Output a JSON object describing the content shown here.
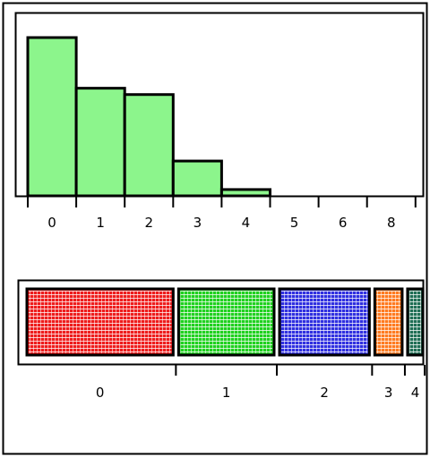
{
  "chart_data": [
    {
      "type": "bar",
      "title": "",
      "xlabel": "",
      "ylabel": "",
      "categories": [
        "0",
        "1",
        "2",
        "3",
        "4",
        "5",
        "6",
        "8"
      ],
      "values": [
        100,
        68,
        64,
        22,
        4,
        0,
        0,
        0
      ],
      "ylim": [
        0,
        100
      ],
      "grid": false,
      "bar_color": "#8cf58c",
      "edge_color": "#000000"
    },
    {
      "type": "bar",
      "orientation": "horizontal-stacked",
      "title": "",
      "xlabel": "",
      "categories": [
        "0",
        "1",
        "2",
        "3",
        "4"
      ],
      "values": [
        36.3,
        23.7,
        22.3,
        6.8,
        3.8
      ],
      "colors": [
        "#ee1c1c",
        "#1fd11f",
        "#2f2fe0",
        "#ff7a1f",
        "#1f6e55"
      ],
      "pattern": "dotted-grid",
      "grid": false
    }
  ]
}
